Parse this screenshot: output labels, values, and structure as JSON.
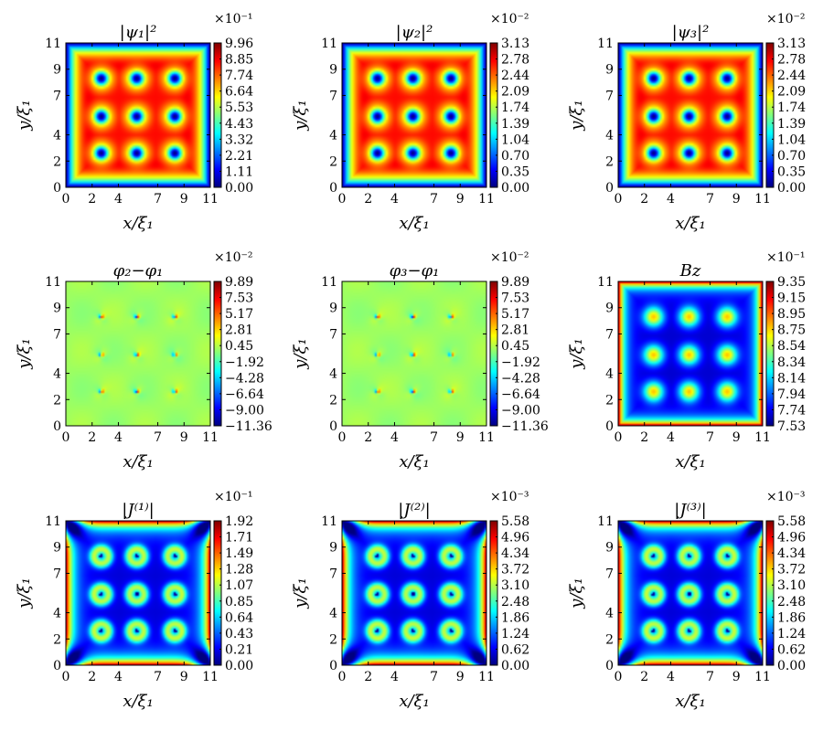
{
  "colormap": [
    "#00007f",
    "#0000ff",
    "#007fff",
    "#00ffff",
    "#7fff7f",
    "#ffff00",
    "#ff7f00",
    "#ff0000",
    "#7f0000"
  ],
  "chart_data": [
    {
      "type": "heatmap",
      "field": "density",
      "title": "|ψ₁|²",
      "xlabel": "x/ξ₁",
      "ylabel": "y/ξ₁",
      "xticks": [
        "0",
        "2",
        "4",
        "7",
        "9",
        "11"
      ],
      "yticks": [
        "0",
        "2",
        "4",
        "7",
        "9",
        "11"
      ],
      "xlim": [
        0,
        11
      ],
      "ylim": [
        0,
        11
      ],
      "colorbar": {
        "multiplier": "×10⁻¹",
        "ticks": [
          "9.96",
          "8.85",
          "7.74",
          "6.64",
          "5.53",
          "4.43",
          "3.32",
          "2.21",
          "1.11",
          "0.00"
        ],
        "min": 0.0,
        "max": 9.96
      },
      "vortices": [
        [
          2.7,
          8.3
        ],
        [
          5.4,
          8.3
        ],
        [
          8.3,
          8.3
        ],
        [
          2.7,
          5.4
        ],
        [
          5.4,
          5.4
        ],
        [
          8.3,
          5.4
        ],
        [
          2.7,
          2.6
        ],
        [
          5.4,
          2.6
        ],
        [
          8.3,
          2.6
        ]
      ]
    },
    {
      "type": "heatmap",
      "field": "density",
      "title": "|ψ₂|²",
      "xlabel": "x/ξ₁",
      "ylabel": "y/ξ₁",
      "xticks": [
        "0",
        "2",
        "4",
        "7",
        "9",
        "11"
      ],
      "yticks": [
        "0",
        "2",
        "4",
        "7",
        "9",
        "11"
      ],
      "xlim": [
        0,
        11
      ],
      "ylim": [
        0,
        11
      ],
      "colorbar": {
        "multiplier": "×10⁻²",
        "ticks": [
          "3.13",
          "2.78",
          "2.44",
          "2.09",
          "1.74",
          "1.39",
          "1.04",
          "0.70",
          "0.35",
          "0.00"
        ],
        "min": 0.0,
        "max": 3.13
      },
      "vortices": [
        [
          2.7,
          8.3
        ],
        [
          5.4,
          8.3
        ],
        [
          8.3,
          8.3
        ],
        [
          2.7,
          5.4
        ],
        [
          5.4,
          5.4
        ],
        [
          8.3,
          5.4
        ],
        [
          2.7,
          2.6
        ],
        [
          5.4,
          2.6
        ],
        [
          8.3,
          2.6
        ]
      ]
    },
    {
      "type": "heatmap",
      "field": "density",
      "title": "|ψ₃|²",
      "xlabel": "x/ξ₁",
      "ylabel": "y/ξ₁",
      "xticks": [
        "0",
        "2",
        "4",
        "7",
        "9",
        "11"
      ],
      "yticks": [
        "0",
        "2",
        "4",
        "7",
        "9",
        "11"
      ],
      "xlim": [
        0,
        11
      ],
      "ylim": [
        0,
        11
      ],
      "colorbar": {
        "multiplier": "×10⁻²",
        "ticks": [
          "3.13",
          "2.78",
          "2.44",
          "2.09",
          "1.74",
          "1.39",
          "1.04",
          "0.70",
          "0.35",
          "0.00"
        ],
        "min": 0.0,
        "max": 3.13
      },
      "vortices": [
        [
          2.7,
          8.3
        ],
        [
          5.4,
          8.3
        ],
        [
          8.3,
          8.3
        ],
        [
          2.7,
          5.4
        ],
        [
          5.4,
          5.4
        ],
        [
          8.3,
          5.4
        ],
        [
          2.7,
          2.6
        ],
        [
          5.4,
          2.6
        ],
        [
          8.3,
          2.6
        ]
      ]
    },
    {
      "type": "heatmap",
      "field": "phase",
      "title": "φ₂−φ₁",
      "xlabel": "x/ξ₁",
      "ylabel": "y/ξ₁",
      "xticks": [
        "0",
        "2",
        "4",
        "7",
        "9",
        "11"
      ],
      "yticks": [
        "0",
        "2",
        "4",
        "7",
        "9",
        "11"
      ],
      "xlim": [
        0,
        11
      ],
      "ylim": [
        0,
        11
      ],
      "colorbar": {
        "multiplier": "×10⁻²",
        "ticks": [
          "9.89",
          "7.53",
          "5.17",
          "2.81",
          "0.45",
          "−1.92",
          "−4.28",
          "−6.64",
          "−9.00",
          "−11.36"
        ],
        "min": -11.36,
        "max": 9.89
      },
      "vortices": [
        [
          2.7,
          8.3
        ],
        [
          5.4,
          8.3
        ],
        [
          8.3,
          8.3
        ],
        [
          2.7,
          5.4
        ],
        [
          5.4,
          5.4
        ],
        [
          8.3,
          5.4
        ],
        [
          2.7,
          2.6
        ],
        [
          5.4,
          2.6
        ],
        [
          8.3,
          2.6
        ]
      ]
    },
    {
      "type": "heatmap",
      "field": "phase",
      "title": "φ₃−φ₁",
      "xlabel": "x/ξ₁",
      "ylabel": "y/ξ₁",
      "xticks": [
        "0",
        "2",
        "4",
        "7",
        "9",
        "11"
      ],
      "yticks": [
        "0",
        "2",
        "4",
        "7",
        "9",
        "11"
      ],
      "xlim": [
        0,
        11
      ],
      "ylim": [
        0,
        11
      ],
      "colorbar": {
        "multiplier": "×10⁻²",
        "ticks": [
          "9.89",
          "7.53",
          "5.17",
          "2.81",
          "0.45",
          "−1.92",
          "−4.28",
          "−6.64",
          "−9.00",
          "−11.36"
        ],
        "min": -11.36,
        "max": 9.89
      },
      "vortices": [
        [
          2.7,
          8.3
        ],
        [
          5.4,
          8.3
        ],
        [
          8.3,
          8.3
        ],
        [
          2.7,
          5.4
        ],
        [
          5.4,
          5.4
        ],
        [
          8.3,
          5.4
        ],
        [
          2.7,
          2.6
        ],
        [
          5.4,
          2.6
        ],
        [
          8.3,
          2.6
        ]
      ]
    },
    {
      "type": "heatmap",
      "field": "field",
      "title": "Bz",
      "xlabel": "x/ξ₁",
      "ylabel": "y/ξ₁",
      "xticks": [
        "0",
        "2",
        "4",
        "7",
        "9",
        "11"
      ],
      "yticks": [
        "0",
        "2",
        "4",
        "7",
        "9",
        "11"
      ],
      "xlim": [
        0,
        11
      ],
      "ylim": [
        0,
        11
      ],
      "colorbar": {
        "multiplier": "×10⁻¹",
        "ticks": [
          "9.35",
          "9.15",
          "8.95",
          "8.75",
          "8.54",
          "8.34",
          "8.14",
          "7.94",
          "7.74",
          "7.53"
        ],
        "min": 7.53,
        "max": 9.35
      },
      "vortices": [
        [
          2.7,
          8.3
        ],
        [
          5.4,
          8.3
        ],
        [
          8.3,
          8.3
        ],
        [
          2.7,
          5.4
        ],
        [
          5.4,
          5.4
        ],
        [
          8.3,
          5.4
        ],
        [
          2.7,
          2.6
        ],
        [
          5.4,
          2.6
        ],
        [
          8.3,
          2.6
        ]
      ]
    },
    {
      "type": "heatmap",
      "field": "current",
      "title": "|J⁽¹⁾|",
      "xlabel": "x/ξ₁",
      "ylabel": "y/ξ₁",
      "xticks": [
        "0",
        "2",
        "4",
        "7",
        "9",
        "11"
      ],
      "yticks": [
        "0",
        "2",
        "4",
        "7",
        "9",
        "11"
      ],
      "xlim": [
        0,
        11
      ],
      "ylim": [
        0,
        11
      ],
      "colorbar": {
        "multiplier": "×10⁻¹",
        "ticks": [
          "1.92",
          "1.71",
          "1.49",
          "1.28",
          "1.07",
          "0.85",
          "0.64",
          "0.43",
          "0.21",
          "0.00"
        ],
        "min": 0.0,
        "max": 1.92
      },
      "vortices": [
        [
          2.7,
          8.3
        ],
        [
          5.4,
          8.3
        ],
        [
          8.3,
          8.3
        ],
        [
          2.7,
          5.4
        ],
        [
          5.4,
          5.4
        ],
        [
          8.3,
          5.4
        ],
        [
          2.7,
          2.6
        ],
        [
          5.4,
          2.6
        ],
        [
          8.3,
          2.6
        ]
      ]
    },
    {
      "type": "heatmap",
      "field": "current",
      "title": "|J⁽²⁾|",
      "xlabel": "x/ξ₁",
      "ylabel": "y/ξ₁",
      "xticks": [
        "0",
        "2",
        "4",
        "7",
        "9",
        "11"
      ],
      "yticks": [
        "0",
        "2",
        "4",
        "7",
        "9",
        "11"
      ],
      "xlim": [
        0,
        11
      ],
      "ylim": [
        0,
        11
      ],
      "colorbar": {
        "multiplier": "×10⁻³",
        "ticks": [
          "5.58",
          "4.96",
          "4.34",
          "3.72",
          "3.10",
          "2.48",
          "1.86",
          "1.24",
          "0.62",
          "0.00"
        ],
        "min": 0.0,
        "max": 5.58
      },
      "vortices": [
        [
          2.7,
          8.3
        ],
        [
          5.4,
          8.3
        ],
        [
          8.3,
          8.3
        ],
        [
          2.7,
          5.4
        ],
        [
          5.4,
          5.4
        ],
        [
          8.3,
          5.4
        ],
        [
          2.7,
          2.6
        ],
        [
          5.4,
          2.6
        ],
        [
          8.3,
          2.6
        ]
      ]
    },
    {
      "type": "heatmap",
      "field": "current",
      "title": "|J⁽³⁾|",
      "xlabel": "x/ξ₁",
      "ylabel": "y/ξ₁",
      "xticks": [
        "0",
        "2",
        "4",
        "7",
        "9",
        "11"
      ],
      "yticks": [
        "0",
        "2",
        "4",
        "7",
        "9",
        "11"
      ],
      "xlim": [
        0,
        11
      ],
      "ylim": [
        0,
        11
      ],
      "colorbar": {
        "multiplier": "×10⁻³",
        "ticks": [
          "5.58",
          "4.96",
          "4.34",
          "3.72",
          "3.10",
          "2.48",
          "1.86",
          "1.24",
          "0.62",
          "0.00"
        ],
        "min": 0.0,
        "max": 5.58
      },
      "vortices": [
        [
          2.7,
          8.3
        ],
        [
          5.4,
          8.3
        ],
        [
          8.3,
          8.3
        ],
        [
          2.7,
          5.4
        ],
        [
          5.4,
          5.4
        ],
        [
          8.3,
          5.4
        ],
        [
          2.7,
          2.6
        ],
        [
          5.4,
          2.6
        ],
        [
          8.3,
          2.6
        ]
      ]
    }
  ]
}
